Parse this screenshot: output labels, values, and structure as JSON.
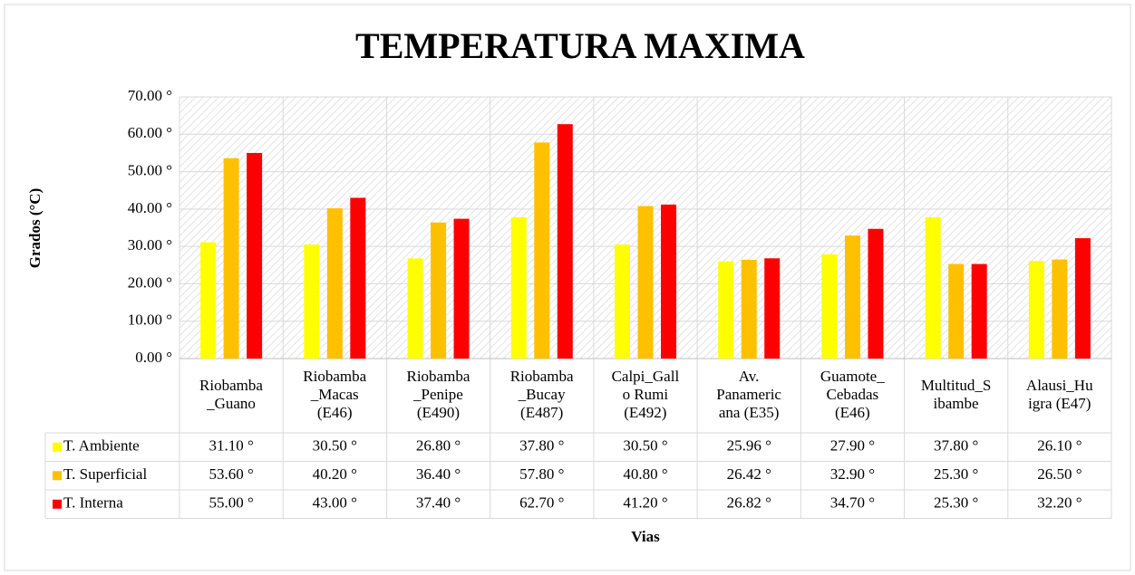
{
  "chart_data": {
    "type": "bar",
    "title": "TEMPERATURA MAXIMA",
    "x_label": "Vias",
    "y_label": "Grados (°C)",
    "categories": [
      "Riobamba\n_Guano",
      "Riobamba\n_Macas\n(E46)",
      "Riobamba\n_Penipe\n(E490)",
      "Riobamba\n_Bucay\n(E487)",
      "Calpi_Gall\no Rumi\n(E492)",
      "Av.\nPanameric\nana (E35)",
      "Guamote_\nCebadas\n(E46)",
      "Multitud_S\nibambe",
      "Alausi_Hu\nigra (E47)"
    ],
    "series": [
      {
        "name": "T. Ambiente",
        "color": "#ffff00",
        "values": [
          31.1,
          30.5,
          26.8,
          37.8,
          30.5,
          25.96,
          27.9,
          37.8,
          26.1
        ],
        "value_labels": [
          "31.10 °",
          "30.50 °",
          "26.80 °",
          "37.80 °",
          "30.50 °",
          "25.96 °",
          "27.90 °",
          "37.80 °",
          "26.10 °"
        ]
      },
      {
        "name": "T. Superficial",
        "color": "#ffc000",
        "values": [
          53.6,
          40.2,
          36.4,
          57.8,
          40.8,
          26.42,
          32.9,
          25.3,
          26.5
        ],
        "value_labels": [
          "53.60 °",
          "40.20 °",
          "36.40 °",
          "57.80 °",
          "40.80 °",
          "26.42 °",
          "32.90 °",
          "25.30 °",
          "26.50 °"
        ]
      },
      {
        "name": "T. Interna",
        "color": "#ff0000",
        "values": [
          55.0,
          43.0,
          37.4,
          62.7,
          41.2,
          26.82,
          34.7,
          25.3,
          32.2
        ],
        "value_labels": [
          "55.00 °",
          "43.00 °",
          "37.40 °",
          "62.70 °",
          "41.20 °",
          "26.82 °",
          "34.70 °",
          "25.30 °",
          "32.20 °"
        ]
      }
    ],
    "ylim": [
      0,
      70
    ],
    "yticks": [
      {
        "value": 0,
        "label": "0.00 °"
      },
      {
        "value": 10,
        "label": "10.00 °"
      },
      {
        "value": 20,
        "label": "20.00 °"
      },
      {
        "value": 30,
        "label": "30.00 °"
      },
      {
        "value": 40,
        "label": "40.00 °"
      },
      {
        "value": 50,
        "label": "50.00 °"
      },
      {
        "value": 60,
        "label": "60.00 °"
      },
      {
        "value": 70,
        "label": "70.00 °"
      }
    ],
    "grid": true
  }
}
